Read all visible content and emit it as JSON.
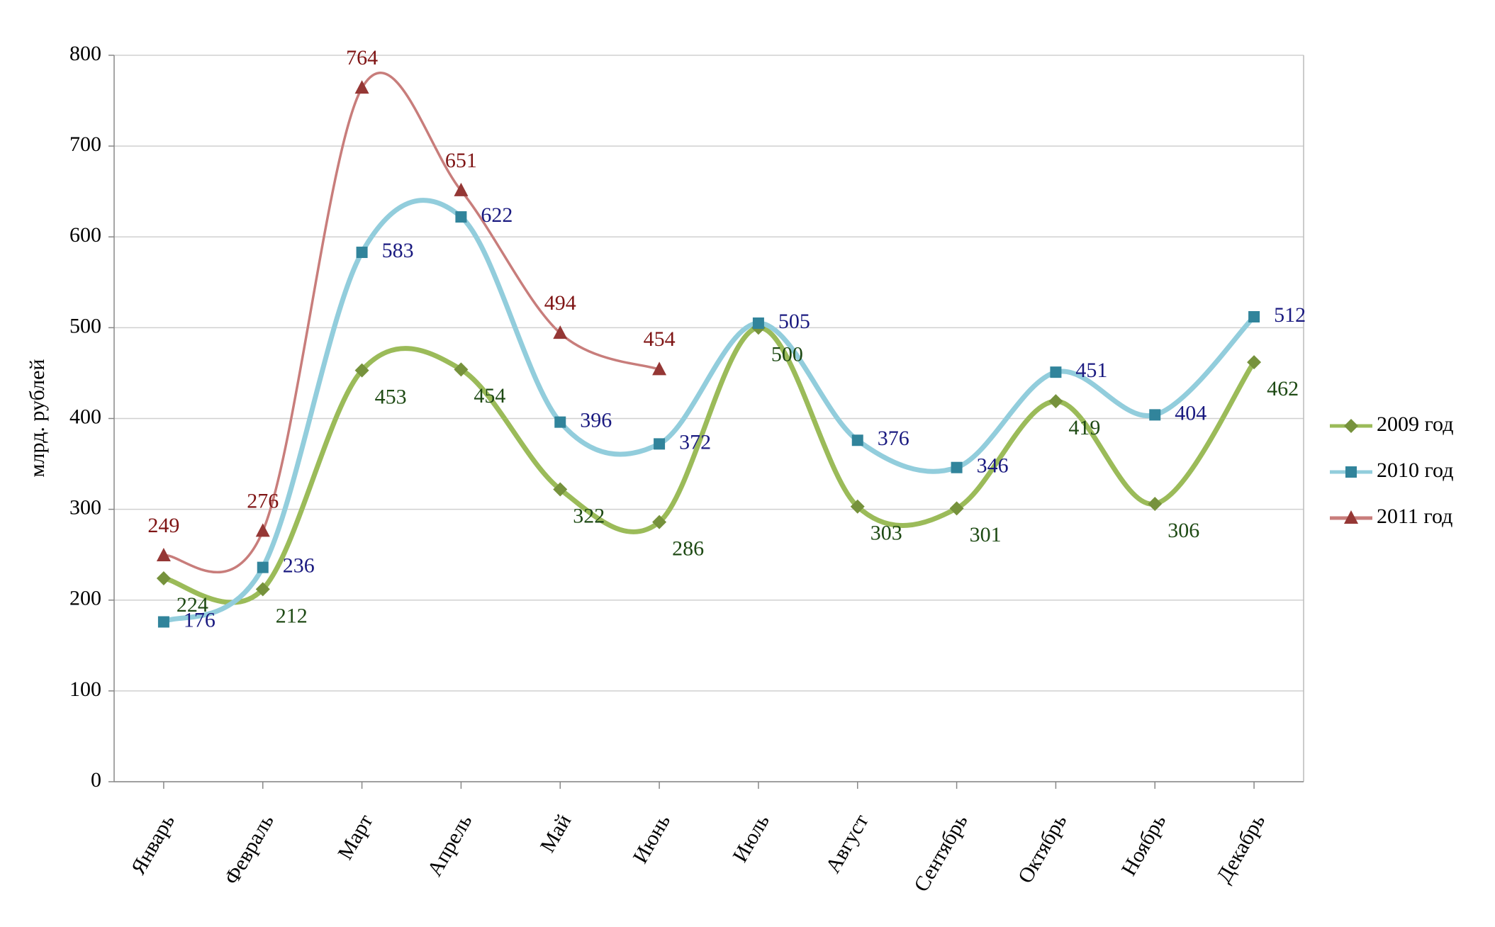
{
  "chart_data": {
    "type": "line",
    "y_label": "млрд. рублей",
    "categories": [
      "Январь",
      "Февраль",
      "Март",
      "Апрель",
      "Май",
      "Июнь",
      "Июль",
      "Август",
      "Сентябрь",
      "Октябрь",
      "Ноябрь",
      "Декабрь"
    ],
    "series": [
      {
        "name": "2009 год",
        "color": "#9bbb59",
        "marker_color": "#76923c",
        "label_color": "#1e4a14",
        "marker": "diamond",
        "values": [
          224,
          212,
          453,
          454,
          322,
          286,
          500,
          303,
          301,
          419,
          306,
          462
        ]
      },
      {
        "name": "2010 год",
        "color": "#92cddc",
        "marker_color": "#31849b",
        "label_color": "#1a1a80",
        "marker": "square",
        "values": [
          176,
          236,
          583,
          622,
          396,
          372,
          505,
          376,
          346,
          451,
          404,
          512
        ]
      },
      {
        "name": "2011 год",
        "color": "#c87d7b",
        "marker_color": "#953735",
        "label_color": "#7f1515",
        "marker": "triangle",
        "values": [
          249,
          276,
          764,
          651,
          494,
          454,
          null,
          null,
          null,
          null,
          null,
          null
        ]
      }
    ],
    "ylim": [
      0,
      800
    ],
    "yticks": [
      0,
      100,
      200,
      300,
      400,
      500,
      600,
      700,
      800
    ],
    "grid": true,
    "legend": "right"
  }
}
